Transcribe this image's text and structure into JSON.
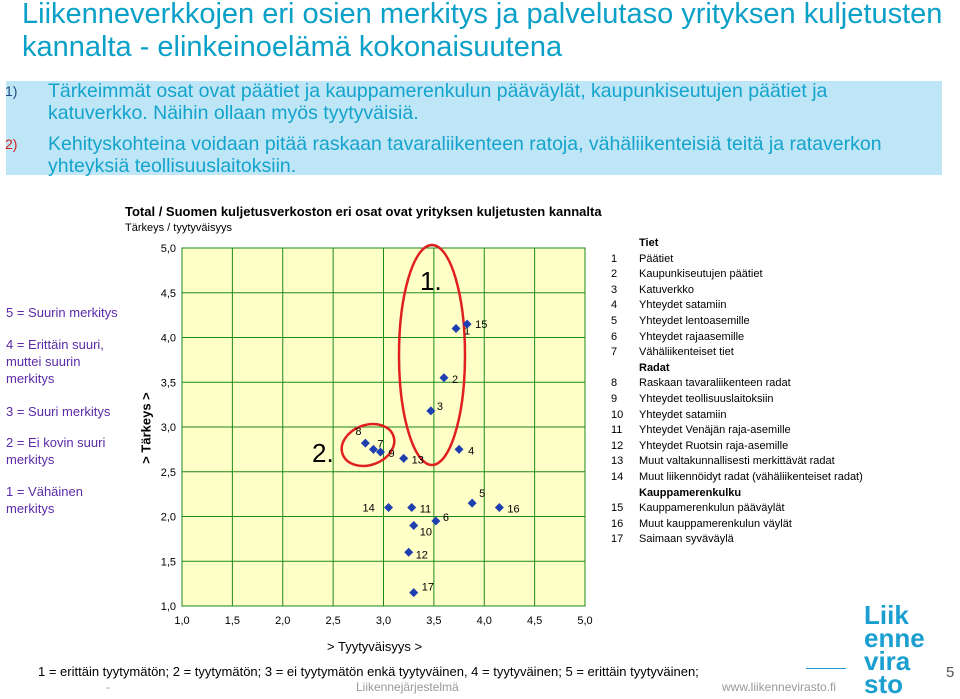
{
  "title": "Liikenneverkkojen eri osien merkitys ja palvelutaso yrityksen kuljetusten kannalta - elinkeinoelämä kokonaisuutena",
  "points": [
    {
      "num": "1)",
      "text": "Tärkeimmät osat ovat päätiet ja kauppamerenkulun pääväylät, kaupunkiseutujen päätiet ja katuverkko. Näihin ollaan myös tyytyväisiä."
    },
    {
      "num": "2)",
      "text": "Kehityskohteina voidaan pitää raskaan tavaraliikenteen ratoja, vähäliikenteisiä teitä ja rataverkon yhteyksiä teollisuuslaitoksiin."
    }
  ],
  "scale": [
    "5 = Suurin merkitys",
    "4 = Erittäin suuri, muttei suurin merkitys",
    "3 = Suuri merkitys",
    "2 = Ei kovin suuri merkitys",
    "1 = Vähäinen merkitys"
  ],
  "footer_line": "1 = erittäin tyytymätön; 2 = tyytymätön; 3 = ei tyytymätön enkä tyytyväinen, 4 = tyytyväinen; 5 = erittäin tyytyväinen;",
  "footer_center": "Liikennejärjestelmä",
  "footer_url": "www.liikennevirasto.fi",
  "footer_dash": "-",
  "logo": [
    "Liik",
    "enne",
    "vira",
    "sto"
  ],
  "page_number": "5",
  "colors": {
    "marker": "#1f3fb0",
    "ellipse": "#e02020",
    "plot_bg": "#ffffc8",
    "grid": "#1a8a1a",
    "title": "#0aa0c8"
  },
  "chart_data": {
    "type": "scatter",
    "title": "Total / Suomen kuljetusverkoston eri osat ovat yrityksen kuljetusten kannalta",
    "subtitle": "Tärkeys / tyytyväisyys",
    "xlabel": "> Tyytyväisyys >",
    "ylabel": "> Tärkeys >",
    "xlim": [
      1.0,
      5.0
    ],
    "ylim": [
      1.0,
      5.0
    ],
    "xticks": [
      "1,0",
      "1,5",
      "2,0",
      "2,5",
      "3,0",
      "3,5",
      "4,0",
      "4,5",
      "5,0"
    ],
    "yticks": [
      "1,0",
      "1,5",
      "2,0",
      "2,5",
      "3,0",
      "3,5",
      "4,0",
      "4,5",
      "5,0"
    ],
    "grid": true,
    "points": [
      {
        "id": "1",
        "x": 3.72,
        "y": 4.1
      },
      {
        "id": "2",
        "x": 3.6,
        "y": 3.55
      },
      {
        "id": "3",
        "x": 3.47,
        "y": 3.18
      },
      {
        "id": "4",
        "x": 3.75,
        "y": 2.75
      },
      {
        "id": "5",
        "x": 3.88,
        "y": 2.15
      },
      {
        "id": "6",
        "x": 3.52,
        "y": 1.95
      },
      {
        "id": "7",
        "x": 2.9,
        "y": 2.75
      },
      {
        "id": "8",
        "x": 2.82,
        "y": 2.82
      },
      {
        "id": "9",
        "x": 2.97,
        "y": 2.72
      },
      {
        "id": "10",
        "x": 3.3,
        "y": 1.9
      },
      {
        "id": "11",
        "x": 3.28,
        "y": 2.1
      },
      {
        "id": "12",
        "x": 3.25,
        "y": 1.6
      },
      {
        "id": "13",
        "x": 3.2,
        "y": 2.65
      },
      {
        "id": "14",
        "x": 3.05,
        "y": 2.1
      },
      {
        "id": "15",
        "x": 3.83,
        "y": 4.15
      },
      {
        "id": "16",
        "x": 4.15,
        "y": 2.1
      },
      {
        "id": "17",
        "x": 3.3,
        "y": 1.15
      }
    ],
    "annotations": [
      "1.",
      "2."
    ],
    "legend": [
      {
        "type": "head",
        "text": "Tiet"
      },
      {
        "num": "1",
        "text": "Päätiet"
      },
      {
        "num": "2",
        "text": "Kaupunkiseutujen päätiet"
      },
      {
        "num": "3",
        "text": "Katuverkko"
      },
      {
        "num": "4",
        "text": "Yhteydet satamiin"
      },
      {
        "num": "5",
        "text": "Yhteydet lentoasemille"
      },
      {
        "num": "6",
        "text": "Yhteydet rajaasemille"
      },
      {
        "num": "7",
        "text": "Vähäliikenteiset tiet"
      },
      {
        "type": "head",
        "text": "Radat"
      },
      {
        "num": "8",
        "text": "Raskaan tavaraliikenteen radat"
      },
      {
        "num": "9",
        "text": "Yhteydet teollisuuslaitoksiin"
      },
      {
        "num": "10",
        "text": "Yhteydet satamiin"
      },
      {
        "num": "11",
        "text": "Yhteydet Venäjän raja-asemille"
      },
      {
        "num": "12",
        "text": "Yhteydet Ruotsin raja-asemille"
      },
      {
        "num": "13",
        "text": "Muut valtakunnallisesti merkittävät radat"
      },
      {
        "num": "14",
        "text": "Muut liikennöidyt radat (vähäliikenteiset radat)"
      },
      {
        "type": "head",
        "text": "Kauppamerenkulku"
      },
      {
        "num": "15",
        "text": "Kauppamerenkulun pääväylät"
      },
      {
        "num": "16",
        "text": "Muut kauppamerenkulun väylät"
      },
      {
        "num": "17",
        "text": "Saimaan syväväylä"
      }
    ]
  }
}
